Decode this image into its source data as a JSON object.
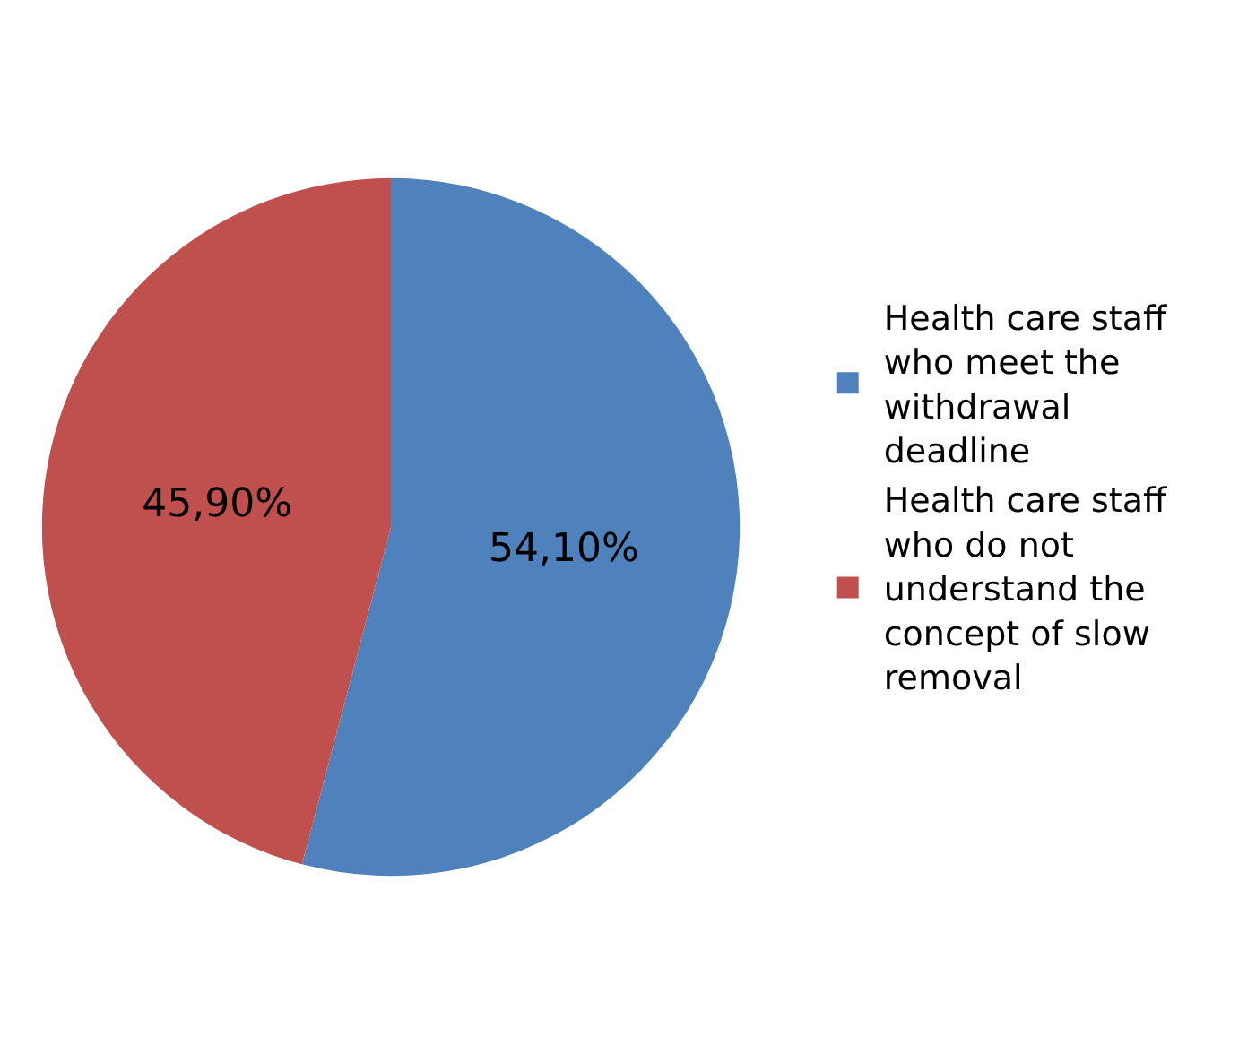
{
  "chart_data": {
    "type": "pie",
    "categories": [
      "Health care staff who meet the withdrawal deadline",
      "Health care staff who do not understand the concept of slow removal"
    ],
    "values": [
      54.1,
      45.9
    ],
    "colors": [
      "#4f81bd",
      "#c0504d"
    ],
    "value_labels": [
      "54,10%",
      "45,90%"
    ],
    "legend": "right"
  }
}
